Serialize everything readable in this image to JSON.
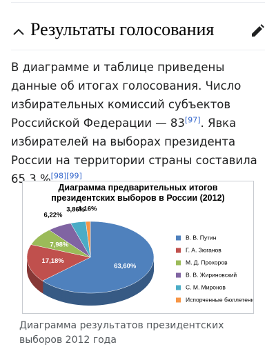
{
  "section": {
    "title": "Результаты голосования"
  },
  "paragraph": {
    "text1": "В диаграмме и таблице приведены данные об итогах голосования. Число избирательных комиссий субъектов Российской Федерации — 83",
    "ref1": "[97]",
    "text2": ". Явка избирателей на выборах президента России на территории страны составила 65,3 %",
    "ref2": "[98]",
    "ref3": "[99]",
    "text3": "."
  },
  "chart_data": {
    "type": "pie",
    "title": "Диаграмма предварительных итогов президентских выборов в России (2012)",
    "categories": [
      "В. В. Путин",
      "Г. А. Зюганов",
      "М. Д. Прохоров",
      "В. В. Жириновский",
      "С. М. Миронов",
      "Испорченные бюллетени"
    ],
    "values": [
      63.6,
      17.18,
      7.98,
      6.22,
      3.86,
      1.16
    ],
    "value_labels": [
      "63,60%",
      "17,18%",
      "7,98%",
      "6,22%",
      "3,86%",
      "1,16%"
    ],
    "colors": [
      "#4f81bd",
      "#c0504d",
      "#9bbb59",
      "#8064a2",
      "#4bacc6",
      "#f79646"
    ],
    "legend": "right"
  },
  "caption": "Диаграмма результатов президентских выборов 2012 года"
}
